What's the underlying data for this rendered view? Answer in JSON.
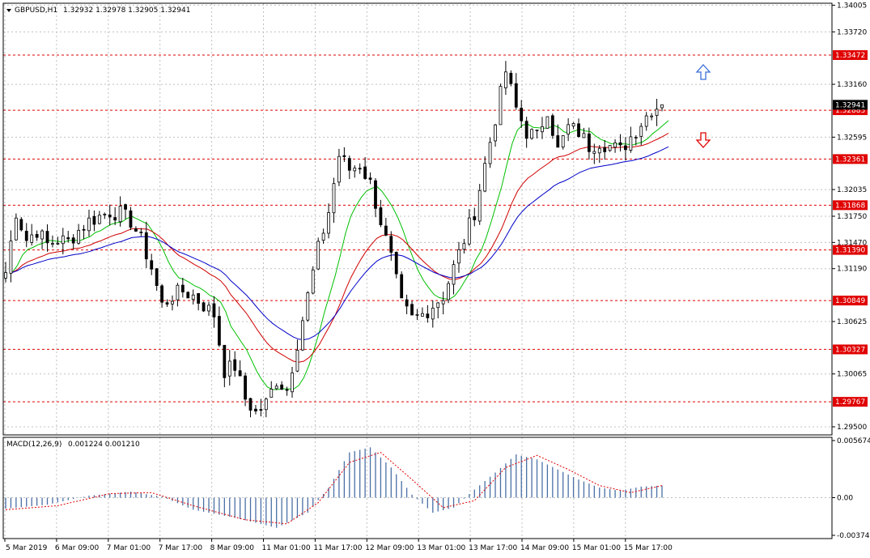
{
  "header": {
    "symbol_label": "GBPUSD,H1",
    "ohlc_text": "1.32932 1.32978 1.32905 1.32941"
  },
  "macd_header": {
    "title": "MACD(12,26,9)",
    "values_text": "0.001224 0.001210"
  },
  "colors": {
    "bull_candle": "#ffffff",
    "bear_candle": "#000000",
    "ma_fast": "#00c000",
    "ma_mid": "#d00000",
    "ma_slow": "#0000c8",
    "level_line": "#e00000",
    "level_tag_bg": "#e00000",
    "grid": "#c0c0c0",
    "macd_hist": "#4a6fa5",
    "macd_signal": "#e00000",
    "arrow_up": "#3a6fd8",
    "arrow_down": "#e00000"
  },
  "icons": {
    "up_arrow": "arrow-up-icon",
    "down_arrow": "arrow-down-icon",
    "dropdown": "triangle-down-icon"
  },
  "chart_data": [
    {
      "type": "candlestick",
      "symbol": "GBPUSD",
      "timeframe": "H1",
      "ylim": [
        1.295,
        1.34
      ],
      "y_ticks": [
        "1.34005",
        "1.33720",
        "1.33160",
        "1.32595",
        "1.32035",
        "1.31750",
        "1.31470",
        "1.31190",
        "1.30625",
        "1.30065",
        "1.29500"
      ],
      "y_tick_values": [
        1.34005,
        1.3372,
        1.3316,
        1.32595,
        1.32035,
        1.3175,
        1.3147,
        1.3119,
        1.30625,
        1.30065,
        1.295
      ],
      "x_labels": [
        "5 Mar 2019",
        "6 Mar 09:00",
        "7 Mar 01:00",
        "7 Mar 17:00",
        "8 Mar 09:00",
        "11 Mar 01:00",
        "11 Mar 17:00",
        "12 Mar 09:00",
        "13 Mar 01:00",
        "13 Mar 17:00",
        "14 Mar 09:00",
        "15 Mar 01:00",
        "15 Mar 17:00"
      ],
      "levels": [
        {
          "label": "1.33472",
          "value": 1.33472
        },
        {
          "label": "1.32883",
          "value": 1.32883
        },
        {
          "label": "1.32361",
          "value": 1.32361
        },
        {
          "label": "1.31868",
          "value": 1.31868
        },
        {
          "label": "1.31390",
          "value": 1.3139
        },
        {
          "label": "1.30849",
          "value": 1.30849
        },
        {
          "label": "1.30327",
          "value": 1.30327
        },
        {
          "label": "1.29767",
          "value": 1.29767
        }
      ],
      "current_price_label": "1.32941",
      "current_price": 1.32941,
      "close_path": [
        [
          0,
          1.3115
        ],
        [
          2,
          1.318
        ],
        [
          4,
          1.315
        ],
        [
          6,
          1.316
        ],
        [
          8,
          1.3145
        ],
        [
          10,
          1.315
        ],
        [
          12,
          1.3148
        ],
        [
          14,
          1.316
        ],
        [
          16,
          1.317
        ],
        [
          18,
          1.3175
        ],
        [
          20,
          1.318
        ],
        [
          22,
          1.3178
        ],
        [
          24,
          1.317
        ],
        [
          26,
          1.315
        ],
        [
          28,
          1.312
        ],
        [
          30,
          1.308
        ],
        [
          32,
          1.309
        ],
        [
          34,
          1.3095
        ],
        [
          36,
          1.309
        ],
        [
          38,
          1.308
        ],
        [
          40,
          1.307
        ],
        [
          42,
          1.301
        ],
        [
          44,
          1.3015
        ],
        [
          46,
          1.298
        ],
        [
          48,
          1.2965
        ],
        [
          50,
          1.2975
        ],
        [
          52,
          1.3
        ],
        [
          54,
          1.299
        ],
        [
          56,
          1.304
        ],
        [
          58,
          1.309
        ],
        [
          60,
          1.314
        ],
        [
          62,
          1.318
        ],
        [
          64,
          1.324
        ],
        [
          66,
          1.3225
        ],
        [
          68,
          1.323
        ],
        [
          70,
          1.321
        ],
        [
          72,
          1.317
        ],
        [
          74,
          1.313
        ],
        [
          76,
          1.308
        ],
        [
          78,
          1.3065
        ],
        [
          80,
          1.307
        ],
        [
          82,
          1.308
        ],
        [
          84,
          1.309
        ],
        [
          86,
          1.312
        ],
        [
          88,
          1.315
        ],
        [
          90,
          1.318
        ],
        [
          92,
          1.323
        ],
        [
          94,
          1.328
        ],
        [
          96,
          1.333
        ],
        [
          98,
          1.329
        ],
        [
          100,
          1.3265
        ],
        [
          102,
          1.326
        ],
        [
          104,
          1.329
        ],
        [
          106,
          1.3245
        ],
        [
          108,
          1.327
        ],
        [
          110,
          1.3265
        ],
        [
          112,
          1.325
        ],
        [
          114,
          1.3255
        ],
        [
          116,
          1.325
        ],
        [
          118,
          1.3245
        ],
        [
          120,
          1.326
        ],
        [
          122,
          1.3275
        ],
        [
          124,
          1.329
        ],
        [
          126,
          1.3294
        ]
      ]
    },
    {
      "type": "bar",
      "title": "MACD(12,26,9)",
      "ylim": [
        -0.003745,
        0.005674
      ],
      "y_ticks": [
        "0.005674",
        "0.00",
        "-0.003745"
      ],
      "y_tick_values": [
        0.005674,
        0.0,
        -0.003745
      ],
      "histogram_path": [
        [
          0,
          -0.0011
        ],
        [
          8,
          -0.0007
        ],
        [
          16,
          0.0002
        ],
        [
          24,
          0.0006
        ],
        [
          30,
          0.0001
        ],
        [
          36,
          -0.0012
        ],
        [
          44,
          -0.002
        ],
        [
          52,
          -0.003
        ],
        [
          58,
          -0.0015
        ],
        [
          62,
          0.001
        ],
        [
          66,
          0.0045
        ],
        [
          70,
          0.005
        ],
        [
          74,
          0.003
        ],
        [
          78,
          0.0003
        ],
        [
          82,
          -0.0015
        ],
        [
          86,
          -0.001
        ],
        [
          90,
          0.0008
        ],
        [
          94,
          0.0025
        ],
        [
          98,
          0.0043
        ],
        [
          102,
          0.0038
        ],
        [
          106,
          0.0028
        ],
        [
          110,
          0.0018
        ],
        [
          114,
          0.001
        ],
        [
          118,
          0.0007
        ],
        [
          122,
          0.0011
        ],
        [
          126,
          0.0012
        ]
      ],
      "signal_path": [
        [
          0,
          -0.0012
        ],
        [
          10,
          -0.0008
        ],
        [
          20,
          0.0004
        ],
        [
          28,
          0.0005
        ],
        [
          36,
          -0.0008
        ],
        [
          46,
          -0.0022
        ],
        [
          54,
          -0.0026
        ],
        [
          60,
          -0.0005
        ],
        [
          66,
          0.0035
        ],
        [
          72,
          0.0045
        ],
        [
          78,
          0.0018
        ],
        [
          84,
          -0.001
        ],
        [
          90,
          -0.0003
        ],
        [
          96,
          0.003
        ],
        [
          102,
          0.0042
        ],
        [
          108,
          0.0028
        ],
        [
          114,
          0.0012
        ],
        [
          120,
          0.0005
        ],
        [
          126,
          0.0012
        ]
      ]
    }
  ]
}
